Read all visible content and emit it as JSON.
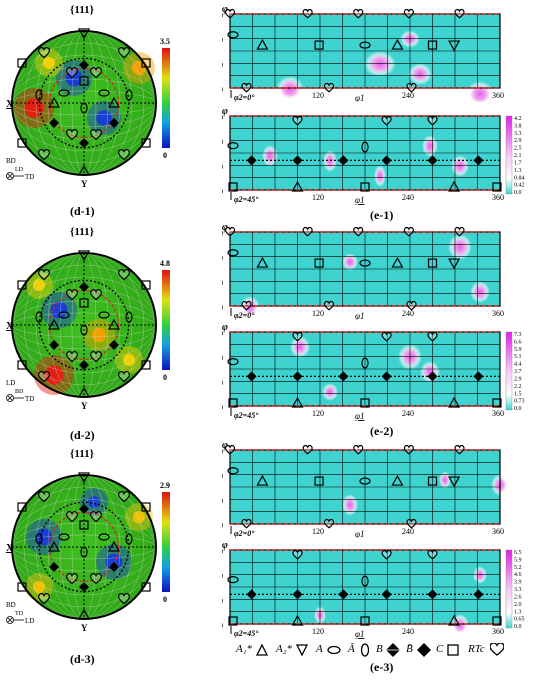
{
  "pole_figures": [
    {
      "id": "d-1",
      "title": "{111}",
      "caption": "(d-1)",
      "cbar_max": "3.5",
      "cbar_min": "0",
      "axis_top": "BD",
      "axis_right": "TD",
      "axis_mid": "LD",
      "x_label": "X",
      "y_label": "Y"
    },
    {
      "id": "d-2",
      "title": "{111}",
      "caption": "(d-2)",
      "cbar_max": "4.8",
      "cbar_min": "0",
      "axis_top": "LD",
      "axis_right": "TD",
      "axis_mid": "BD",
      "x_label": "X",
      "y_label": "Y"
    },
    {
      "id": "d-3",
      "title": "{111}",
      "caption": "(d-3)",
      "cbar_max": "2.9",
      "cbar_min": "0",
      "axis_top": "BD",
      "axis_right": "LD",
      "axis_mid": "TD",
      "x_label": "X",
      "y_label": "Y"
    }
  ],
  "odf_sections": [
    {
      "group": "e-1",
      "phi2": "φ2=0°",
      "ticks_y": [
        "0",
        "30",
        "60",
        "90"
      ],
      "ticks_x": [
        "120",
        "240",
        "360"
      ],
      "y_axis": "φ",
      "x_axis": "φ1",
      "scale": []
    },
    {
      "group": "e-1",
      "phi2": "φ2=45°",
      "ticks_y": [
        "0",
        "30",
        "60",
        "90"
      ],
      "ticks_x": [
        "120",
        "240",
        "360"
      ],
      "y_axis": "φ",
      "x_axis": "φ1",
      "scale": [
        "4.2",
        "3.8",
        "3.3",
        "2.9",
        "2.5",
        "2.1",
        "1.7",
        "1.3",
        "0.84",
        "0.42",
        "0.0"
      ]
    },
    {
      "group": "e-2",
      "phi2": "φ2=0°",
      "ticks_y": [
        "0",
        "30",
        "60",
        "90"
      ],
      "ticks_x": [
        "120",
        "240",
        "360"
      ],
      "y_axis": "φ",
      "x_axis": "φ1",
      "scale": []
    },
    {
      "group": "e-2",
      "phi2": "φ2=45°",
      "ticks_y": [
        "0",
        "30",
        "60",
        "90"
      ],
      "ticks_x": [
        "120",
        "240",
        "360"
      ],
      "y_axis": "φ",
      "x_axis": "φ1",
      "scale": [
        "7.3",
        "6.6",
        "5.9",
        "5.1",
        "4.4",
        "3.7",
        "2.9",
        "2.2",
        "1.5",
        "0.73",
        "0.0"
      ]
    },
    {
      "group": "e-3",
      "phi2": "φ2=0°",
      "ticks_y": [
        "0",
        "30",
        "60",
        "90"
      ],
      "ticks_x": [
        "120",
        "240",
        "360"
      ],
      "y_axis": "φ",
      "x_axis": "φ1",
      "scale": []
    },
    {
      "group": "e-3",
      "phi2": "φ2=45°",
      "ticks_y": [
        "0",
        "30",
        "60",
        "90"
      ],
      "ticks_x": [
        "120",
        "240",
        "360"
      ],
      "y_axis": "φ",
      "x_axis": "φ1",
      "scale": [
        "6.5",
        "5.9",
        "5.2",
        "4.6",
        "3.9",
        "3.3",
        "2.6",
        "2.0",
        "1.3",
        "0.65",
        "0.0"
      ]
    }
  ],
  "odf_captions": [
    "(e-1)",
    "(e-2)",
    "(e-3)"
  ],
  "legend": {
    "a1": "A₁*",
    "a2": "A₂*",
    "a": "A",
    "abar": "Ā",
    "b": "B",
    "bbar": "B̄",
    "c": "C",
    "rtc": "RTc"
  },
  "colors": {
    "odf_bg": "#3fd3cf",
    "odf_peak": "#f2a6ef",
    "jet_low": "#1010c0",
    "jet_high": "#e01010",
    "dash_red": "#e02020"
  }
}
